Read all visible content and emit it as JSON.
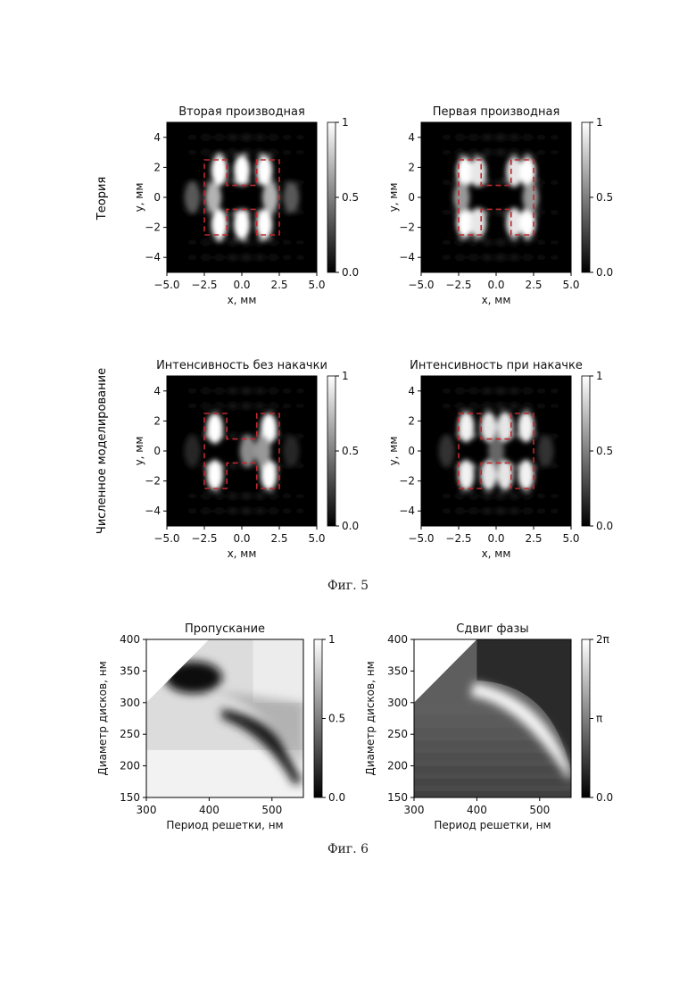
{
  "figure5": {
    "caption": "Фиг. 5",
    "row_labels": [
      "Теория",
      "Численное моделирование"
    ],
    "colorbar": {
      "ticks": [
        "1",
        "0.5",
        "0.0"
      ]
    },
    "chart_data": [
      {
        "type": "heatmap",
        "title": "Вторая производная",
        "xlabel": "x, мм",
        "ylabel": "y, мм",
        "xlim": [
          -5,
          5
        ],
        "ylim": [
          -5,
          5
        ],
        "xticks": [
          "−5.0",
          "−2.5",
          "0.0",
          "2.5",
          "5.0"
        ],
        "yticks": [
          "4",
          "2",
          "0",
          "−2",
          "−4"
        ],
        "colorbar": [
          0,
          1
        ],
        "colormap": "gray",
        "overlay_color": "#c0282d",
        "spots": [
          {
            "x": -1.5,
            "y": 1.8,
            "i": 1.0
          },
          {
            "x": 0,
            "y": 1.8,
            "i": 1.0
          },
          {
            "x": 1.5,
            "y": 1.8,
            "i": 1.0
          },
          {
            "x": -1.5,
            "y": -1.8,
            "i": 1.0
          },
          {
            "x": 0,
            "y": -1.8,
            "i": 1.0
          },
          {
            "x": 1.5,
            "y": -1.8,
            "i": 1.0
          },
          {
            "x": -1.9,
            "y": 0,
            "i": 0.7
          },
          {
            "x": 1.9,
            "y": 0,
            "i": 0.7
          },
          {
            "x": -3.3,
            "y": 0,
            "i": 0.35
          },
          {
            "x": 3.3,
            "y": 0,
            "i": 0.35
          }
        ]
      },
      {
        "type": "heatmap",
        "title": "Первая производная",
        "xlabel": "x, мм",
        "ylabel": "y, мм",
        "xlim": [
          -5,
          5
        ],
        "ylim": [
          -5,
          5
        ],
        "xticks": [
          "−5.0",
          "−2.5",
          "0.0",
          "2.5",
          "5.0"
        ],
        "yticks": [
          "4",
          "2",
          "0",
          "−2",
          "−4"
        ],
        "colorbar": [
          0,
          1
        ],
        "colormap": "gray",
        "overlay_color": "#c0282d",
        "spots": [
          {
            "x": -2.1,
            "y": 1.7,
            "i": 1.0
          },
          {
            "x": -1.2,
            "y": 1.7,
            "i": 0.9
          },
          {
            "x": 1.2,
            "y": 1.7,
            "i": 0.9
          },
          {
            "x": 2.1,
            "y": 1.7,
            "i": 1.0
          },
          {
            "x": -2.1,
            "y": -1.7,
            "i": 1.0
          },
          {
            "x": -1.2,
            "y": -1.7,
            "i": 0.9
          },
          {
            "x": 1.2,
            "y": -1.7,
            "i": 0.9
          },
          {
            "x": 2.1,
            "y": -1.7,
            "i": 1.0
          },
          {
            "x": -2.3,
            "y": 0,
            "i": 0.6
          },
          {
            "x": 2.3,
            "y": 0,
            "i": 0.6
          }
        ]
      },
      {
        "type": "heatmap",
        "title": "Интенсивность без накачки",
        "xlabel": "x, мм",
        "ylabel": "y, мм",
        "xlim": [
          -5,
          5
        ],
        "ylim": [
          -5,
          5
        ],
        "xticks": [
          "−5.0",
          "−2.5",
          "0.0",
          "2.5",
          "5.0"
        ],
        "yticks": [
          "4",
          "2",
          "0",
          "−2",
          "−4"
        ],
        "colorbar": [
          0,
          1
        ],
        "colormap": "gray",
        "overlay_color": "#c0282d",
        "spots": [
          {
            "x": -1.8,
            "y": 1.5,
            "i": 1.0
          },
          {
            "x": 1.8,
            "y": 1.5,
            "i": 1.0
          },
          {
            "x": -1.8,
            "y": -1.6,
            "i": 1.0
          },
          {
            "x": 1.8,
            "y": -1.6,
            "i": 1.0
          },
          {
            "x": 0.4,
            "y": 0,
            "i": 0.55
          },
          {
            "x": 1.4,
            "y": 0,
            "i": 0.6
          },
          {
            "x": -3.3,
            "y": 0,
            "i": 0.15
          },
          {
            "x": 3.3,
            "y": 0,
            "i": 0.15
          }
        ]
      },
      {
        "type": "heatmap",
        "title": "Интенсивность при накачке",
        "xlabel": "x, мм",
        "ylabel": "y, мм",
        "xlim": [
          -5,
          5
        ],
        "ylim": [
          -5,
          5
        ],
        "xticks": [
          "−5.0",
          "−2.5",
          "0.0",
          "2.5",
          "5.0"
        ],
        "yticks": [
          "4",
          "2",
          "0",
          "−2",
          "−4"
        ],
        "colorbar": [
          0,
          1
        ],
        "colormap": "gray",
        "overlay_color": "#c0282d",
        "spots": [
          {
            "x": -2.0,
            "y": 1.6,
            "i": 0.95
          },
          {
            "x": -0.5,
            "y": 1.6,
            "i": 0.9
          },
          {
            "x": 0.6,
            "y": 1.6,
            "i": 0.9
          },
          {
            "x": 2.0,
            "y": 1.6,
            "i": 0.95
          },
          {
            "x": -2.0,
            "y": -1.6,
            "i": 0.95
          },
          {
            "x": -0.5,
            "y": -1.6,
            "i": 0.9
          },
          {
            "x": 0.6,
            "y": -1.6,
            "i": 0.9
          },
          {
            "x": 2.0,
            "y": -1.6,
            "i": 0.95
          },
          {
            "x": 0.0,
            "y": 0,
            "i": 0.4
          },
          {
            "x": -3.3,
            "y": 0,
            "i": 0.2
          },
          {
            "x": 3.3,
            "y": 0,
            "i": 0.2
          }
        ]
      }
    ]
  },
  "figure6": {
    "caption": "Фиг. 6",
    "chart_data": [
      {
        "type": "heatmap",
        "title": "Пропускание",
        "xlabel": "Период решетки, нм",
        "ylabel": "Диаметр дисков, нм",
        "xlim": [
          300,
          550
        ],
        "ylim": [
          150,
          400
        ],
        "xticks": [
          "300",
          "400",
          "500"
        ],
        "yticks": [
          "400",
          "350",
          "300",
          "250",
          "200",
          "150"
        ],
        "colorbar": [
          0,
          1
        ],
        "colorbar_ticks": [
          "1",
          "0.5",
          "0.0"
        ],
        "colormap": "gray"
      },
      {
        "type": "heatmap",
        "title": "Сдвиг фазы",
        "xlabel": "Период решетки, нм",
        "ylabel": "Диаметр дисков, нм",
        "xlim": [
          300,
          550
        ],
        "ylim": [
          150,
          400
        ],
        "xticks": [
          "300",
          "400",
          "500"
        ],
        "yticks": [
          "400",
          "350",
          "300",
          "250",
          "200",
          "150"
        ],
        "colorbar": [
          0,
          6.2832
        ],
        "colorbar_ticks": [
          "2π",
          "π",
          "0.0"
        ],
        "colormap": "gray"
      }
    ]
  }
}
